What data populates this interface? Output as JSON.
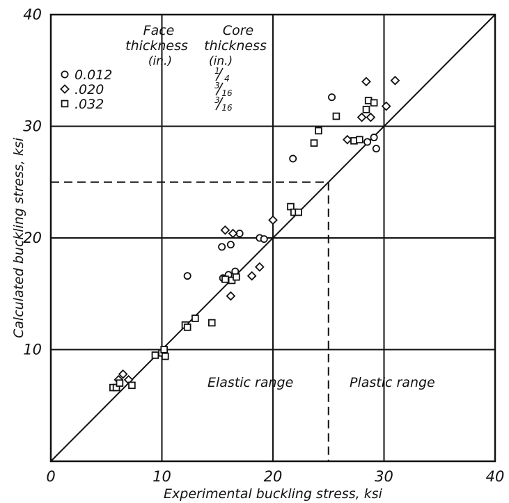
{
  "chart_data": {
    "type": "scatter",
    "xlabel": "Experimental buckling stress, ksi",
    "ylabel": "Calculated buckling stress, ksi",
    "xlim": [
      0,
      40
    ],
    "ylim": [
      0,
      40
    ],
    "xticks": [
      "0",
      "10",
      "20",
      "30",
      "40"
    ],
    "yticks": [
      "0",
      "10",
      "20",
      "30",
      "40"
    ],
    "grid": true,
    "legend": {
      "placement": "top-left",
      "header_face": [
        "Face",
        "thickness",
        "(in.)"
      ],
      "header_core": [
        "Core",
        "thickness",
        "(in.)"
      ],
      "entries": [
        {
          "marker": "circle",
          "face": "0.012",
          "core_num": "1",
          "core_den": "4"
        },
        {
          "marker": "diamond",
          "face": ".020",
          "core_num": "3",
          "core_den": "16"
        },
        {
          "marker": "square",
          "face": ".032",
          "core_num": "3",
          "core_den": "16"
        }
      ]
    },
    "annotations": {
      "elastic": "Elastic range",
      "plastic": "Plastic range",
      "dashed_limit": 25
    },
    "reference_line": {
      "from": [
        0,
        0
      ],
      "to": [
        40,
        40
      ]
    },
    "series": [
      {
        "marker": "circle",
        "points": [
          [
            12.3,
            16.6
          ],
          [
            15.4,
            19.2
          ],
          [
            15.5,
            16.4
          ],
          [
            16.0,
            16.7
          ],
          [
            16.6,
            17.0
          ],
          [
            16.2,
            19.4
          ],
          [
            17.0,
            20.4
          ],
          [
            18.8,
            20.0
          ],
          [
            19.2,
            19.9
          ],
          [
            21.8,
            27.1
          ],
          [
            25.3,
            32.6
          ],
          [
            28.5,
            28.6
          ],
          [
            29.1,
            29.0
          ],
          [
            29.3,
            28.0
          ]
        ]
      },
      {
        "marker": "diamond",
        "points": [
          [
            6.1,
            7.3
          ],
          [
            6.5,
            7.8
          ],
          [
            7.0,
            7.3
          ],
          [
            15.7,
            20.7
          ],
          [
            16.4,
            20.4
          ],
          [
            16.2,
            14.8
          ],
          [
            18.1,
            16.6
          ],
          [
            18.8,
            17.4
          ],
          [
            20.0,
            21.6
          ],
          [
            26.7,
            28.8
          ],
          [
            28.0,
            30.8
          ],
          [
            28.4,
            34.0
          ],
          [
            28.8,
            30.8
          ],
          [
            30.2,
            31.8
          ],
          [
            31.0,
            34.1
          ]
        ]
      },
      {
        "marker": "square",
        "points": [
          [
            5.6,
            6.6
          ],
          [
            5.9,
            6.6
          ],
          [
            6.2,
            7.0
          ],
          [
            7.3,
            6.8
          ],
          [
            9.4,
            9.5
          ],
          [
            10.0,
            9.7
          ],
          [
            10.2,
            10.0
          ],
          [
            10.3,
            9.4
          ],
          [
            12.1,
            12.2
          ],
          [
            12.3,
            12.0
          ],
          [
            13.0,
            12.8
          ],
          [
            14.5,
            12.4
          ],
          [
            15.7,
            16.3
          ],
          [
            16.3,
            16.2
          ],
          [
            16.7,
            16.5
          ],
          [
            21.6,
            22.8
          ],
          [
            21.9,
            22.3
          ],
          [
            22.3,
            22.3
          ],
          [
            23.7,
            28.5
          ],
          [
            24.1,
            29.6
          ],
          [
            25.7,
            30.9
          ],
          [
            27.3,
            28.7
          ],
          [
            27.8,
            28.8
          ],
          [
            28.4,
            31.5
          ],
          [
            28.6,
            32.3
          ],
          [
            29.1,
            32.1
          ]
        ]
      }
    ]
  }
}
